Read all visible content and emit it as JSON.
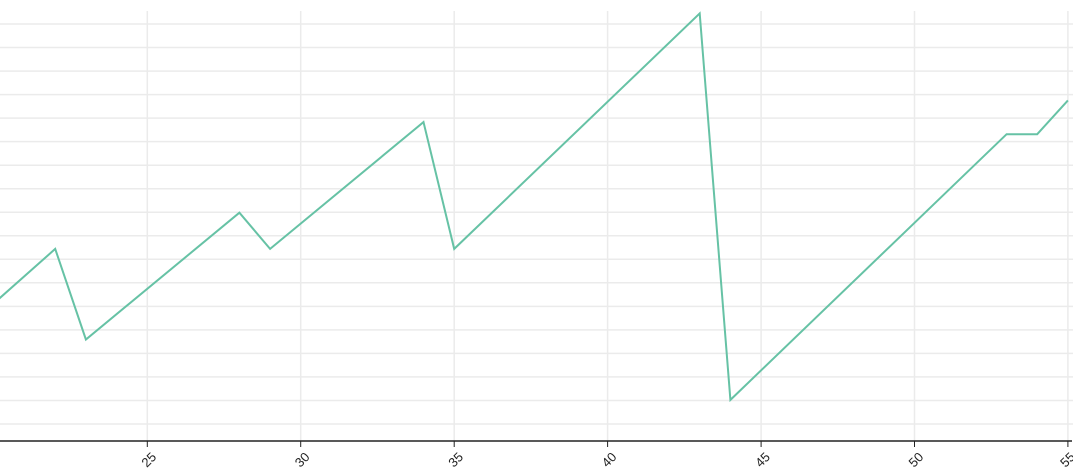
{
  "chart_data": {
    "type": "line",
    "title": "",
    "xlabel": "",
    "ylabel": "",
    "x_ticks": [
      25,
      30,
      35,
      40,
      45,
      50,
      55
    ],
    "xlim": [
      20.2,
      55.1
    ],
    "ylim": [
      -0.2,
      17.6
    ],
    "y_grid_count": 18,
    "grid": true,
    "color": "#66c2a5",
    "series": [
      {
        "x": [
          20,
          22,
          23,
          28,
          29,
          34,
          35,
          43,
          44,
          53,
          54,
          55
        ],
        "y": [
          5.5,
          7.75,
          4,
          9.25,
          7.75,
          13,
          7.75,
          17.5,
          1.5,
          12.5,
          12.5,
          13.9
        ]
      }
    ]
  }
}
